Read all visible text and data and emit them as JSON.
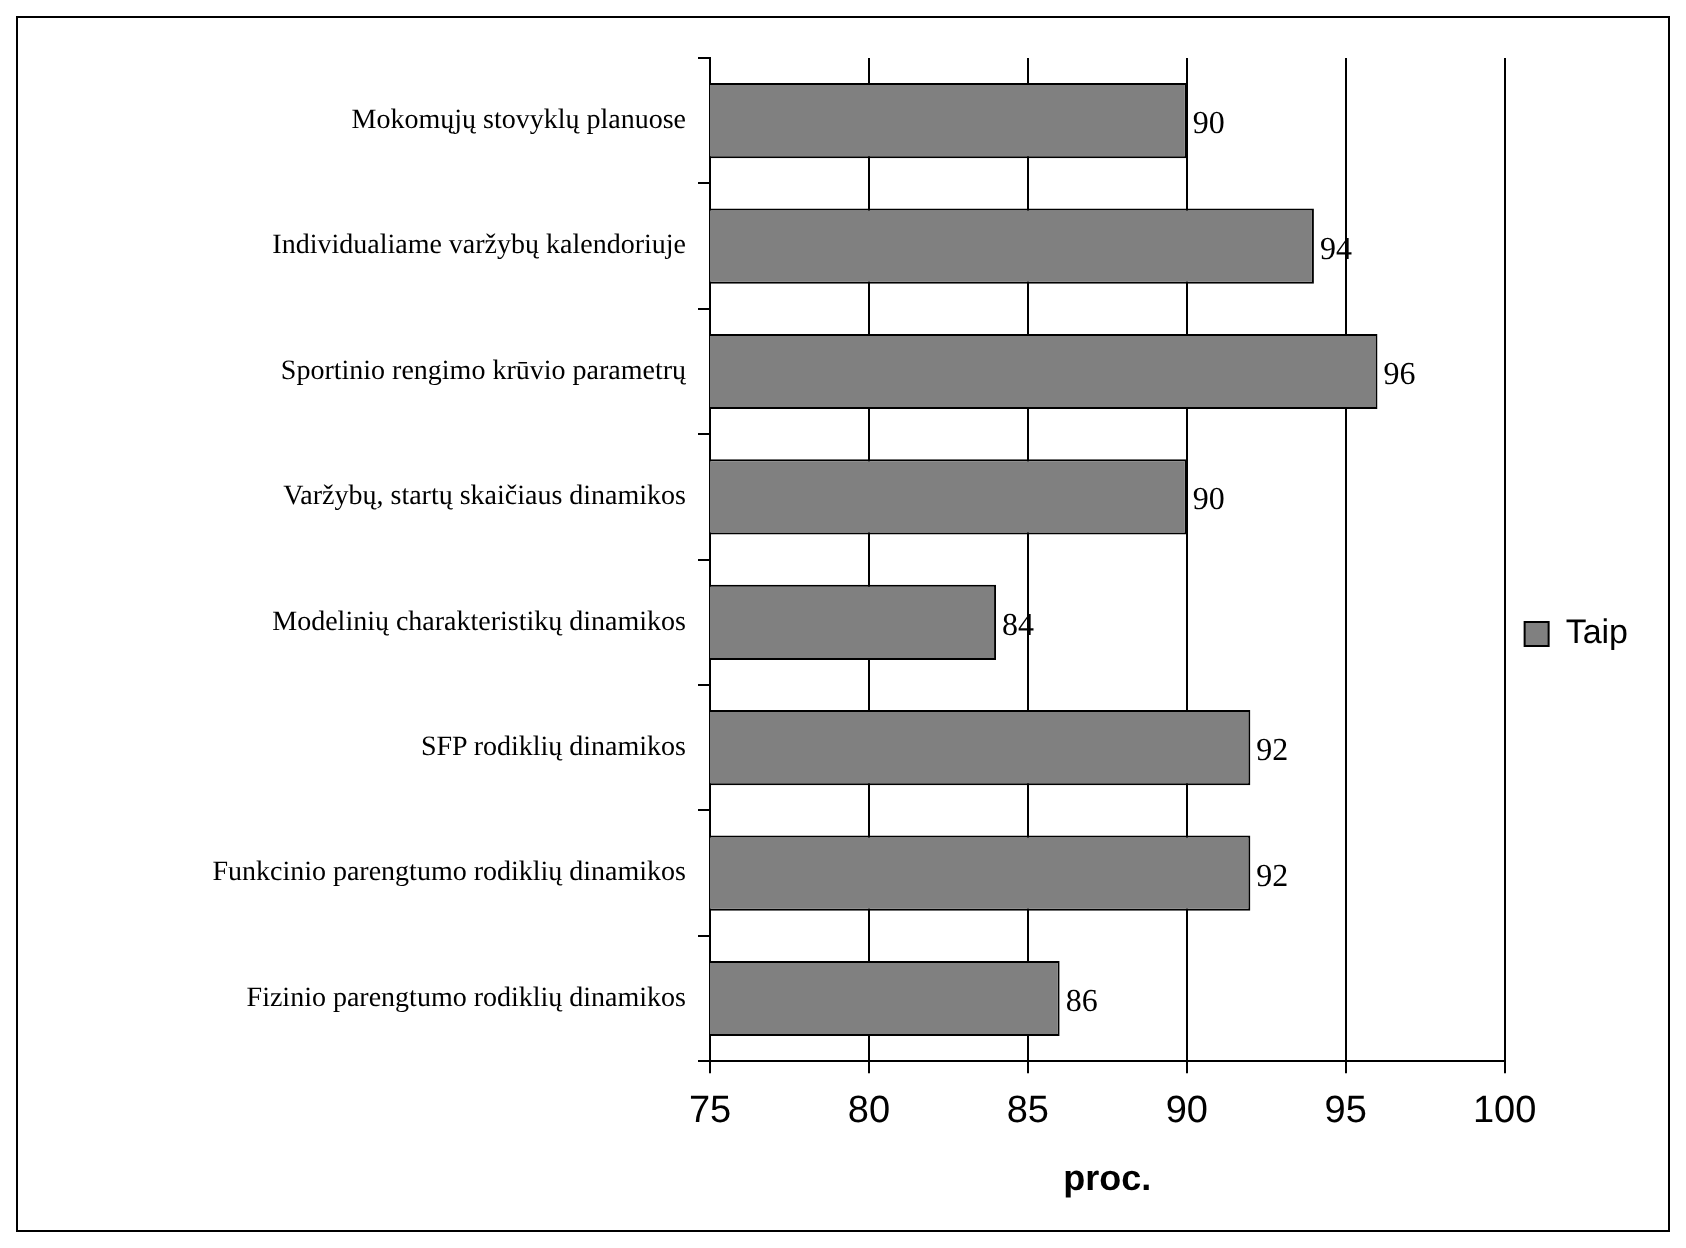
{
  "chart_data": {
    "type": "bar",
    "orientation": "horizontal",
    "xlabel": "proc.",
    "categories": [
      "Mokomųjų stovyklų planuose",
      "Individualiame varžybų kalendoriuje",
      "Sportinio rengimo krūvio parametrų",
      "Varžybų, startų skaičiaus dinamikos",
      "Modelinių charakteristikų dinamikos",
      "SFP rodiklių dinamikos",
      "Funkcinio parengtumo rodiklių dinamikos",
      "Fizinio parengtumo rodiklių dinamikos"
    ],
    "series": [
      {
        "name": "Taip",
        "color": "#808080",
        "values": [
          90,
          94,
          96,
          90,
          84,
          92,
          92,
          86
        ]
      }
    ],
    "xlim": [
      75,
      100
    ],
    "xticks": [
      75,
      80,
      85,
      90,
      95,
      100
    ],
    "grid": "x",
    "legend": "right",
    "data_labels": true
  }
}
